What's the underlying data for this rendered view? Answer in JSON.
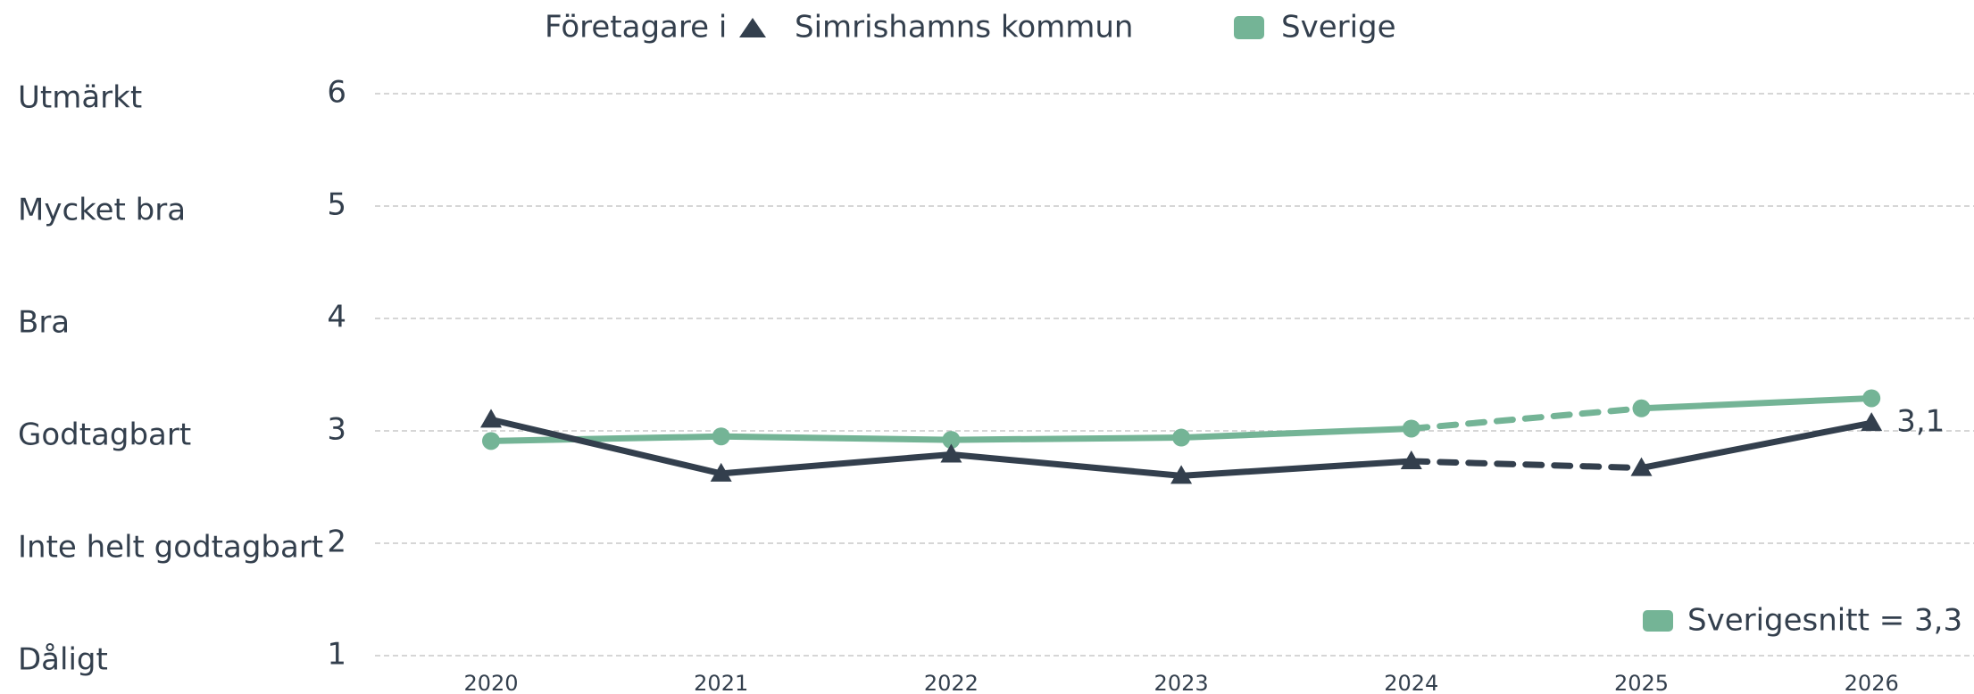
{
  "chart_data": {
    "type": "line",
    "legend_title": "Företagare i",
    "categories": [
      "2020",
      "2021",
      "2022",
      "2023",
      "2024",
      "2025",
      "2026"
    ],
    "series": [
      {
        "name": "Sverige",
        "color": "#74b496",
        "marker": "circle",
        "values": [
          2.91,
          2.95,
          2.92,
          2.94,
          3.02,
          3.2,
          3.29
        ],
        "segment_styles": [
          "solid",
          "solid",
          "solid",
          "solid",
          "dashed",
          "solid"
        ]
      },
      {
        "name": "Simrishamns kommun",
        "color": "#333f4d",
        "marker": "triangle",
        "values": [
          3.1,
          2.62,
          2.79,
          2.6,
          2.73,
          2.67,
          3.07
        ],
        "value_labels": [
          null,
          null,
          null,
          null,
          null,
          null,
          "3,1"
        ],
        "segment_styles": [
          "solid",
          "solid",
          "solid",
          "solid",
          "dashed",
          "solid"
        ]
      }
    ],
    "ylim": [
      1,
      6
    ],
    "yticks": [
      1,
      2,
      3,
      4,
      5,
      6
    ],
    "ytick_names": [
      "Dåligt",
      "Inte helt godtagbart",
      "Godtagbart",
      "Bra",
      "Mycket bra",
      "Utmärkt"
    ],
    "grid": true,
    "annotation": {
      "text": "Sverigesnitt = 3,3",
      "color": "#74b496"
    }
  }
}
